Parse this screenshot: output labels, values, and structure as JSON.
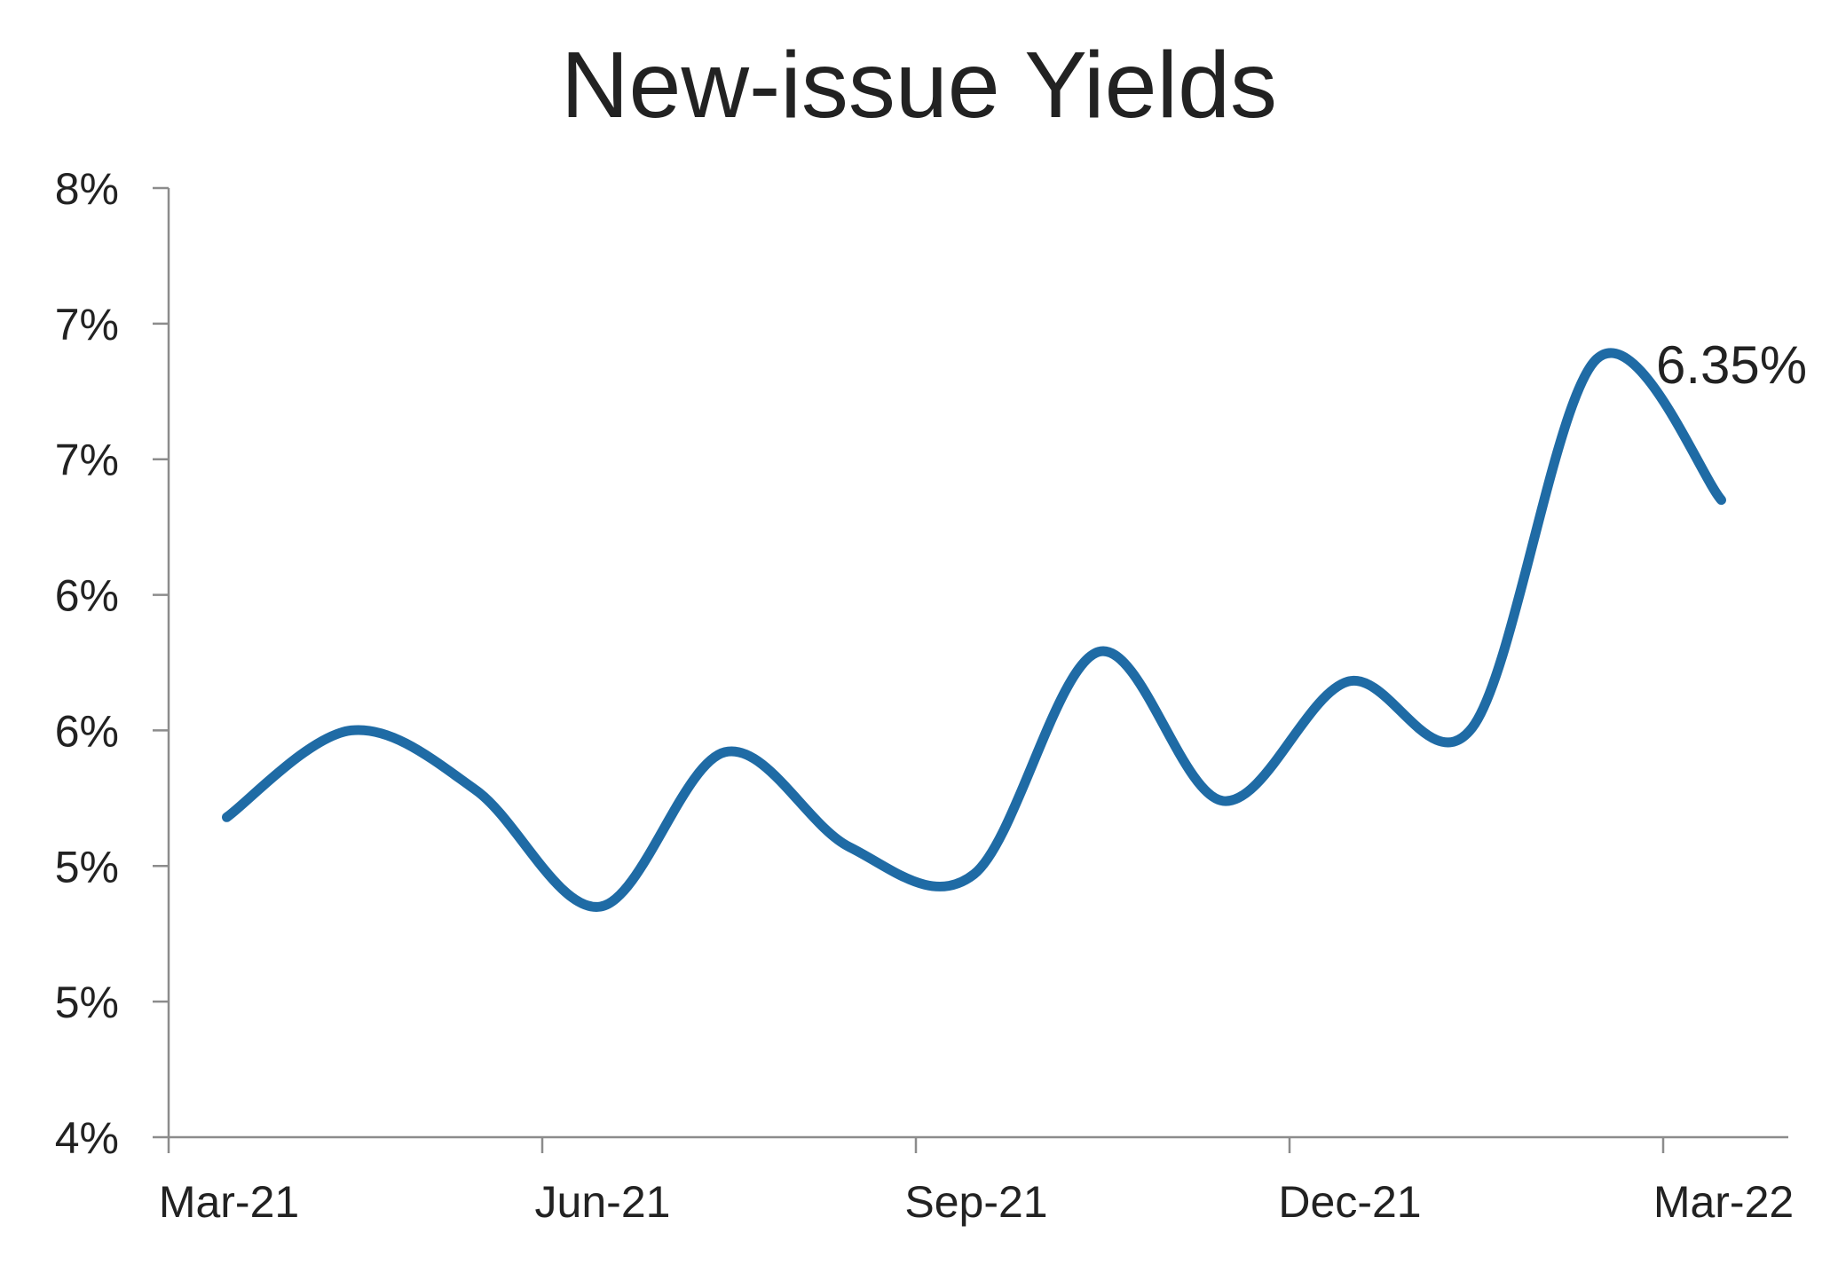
{
  "chart_data": {
    "type": "line",
    "title": "New-issue Yields",
    "xlabel": "",
    "ylabel": "",
    "x_tick_labels": [
      "Mar-21",
      "Jun-21",
      "Sep-21",
      "Dec-21",
      "Mar-22"
    ],
    "y_tick_labels": [
      "4%",
      "5%",
      "5%",
      "6%",
      "6%",
      "7%",
      "7%",
      "8%"
    ],
    "ylim": [
      4.0,
      7.5
    ],
    "grid": false,
    "legend": "none",
    "series": [
      {
        "color": "#1f6ba5",
        "points": [
          {
            "x": "2021-03-15",
            "y": 5.18
          },
          {
            "x": "2021-04-15",
            "y": 5.5
          },
          {
            "x": "2021-05-15",
            "y": 5.28
          },
          {
            "x": "2021-06-15",
            "y": 4.85
          },
          {
            "x": "2021-07-15",
            "y": 5.42
          },
          {
            "x": "2021-08-15",
            "y": 5.07
          },
          {
            "x": "2021-09-15",
            "y": 4.97
          },
          {
            "x": "2021-10-15",
            "y": 5.79
          },
          {
            "x": "2021-11-15",
            "y": 5.24
          },
          {
            "x": "2021-12-15",
            "y": 5.68
          },
          {
            "x": "2022-01-15",
            "y": 5.51
          },
          {
            "x": "2022-02-15",
            "y": 6.87
          },
          {
            "x": "2022-03-15",
            "y": 6.35
          }
        ]
      }
    ],
    "annotations": [
      {
        "text": "6.35%",
        "x": "2022-03-15",
        "y": 6.35
      }
    ]
  }
}
